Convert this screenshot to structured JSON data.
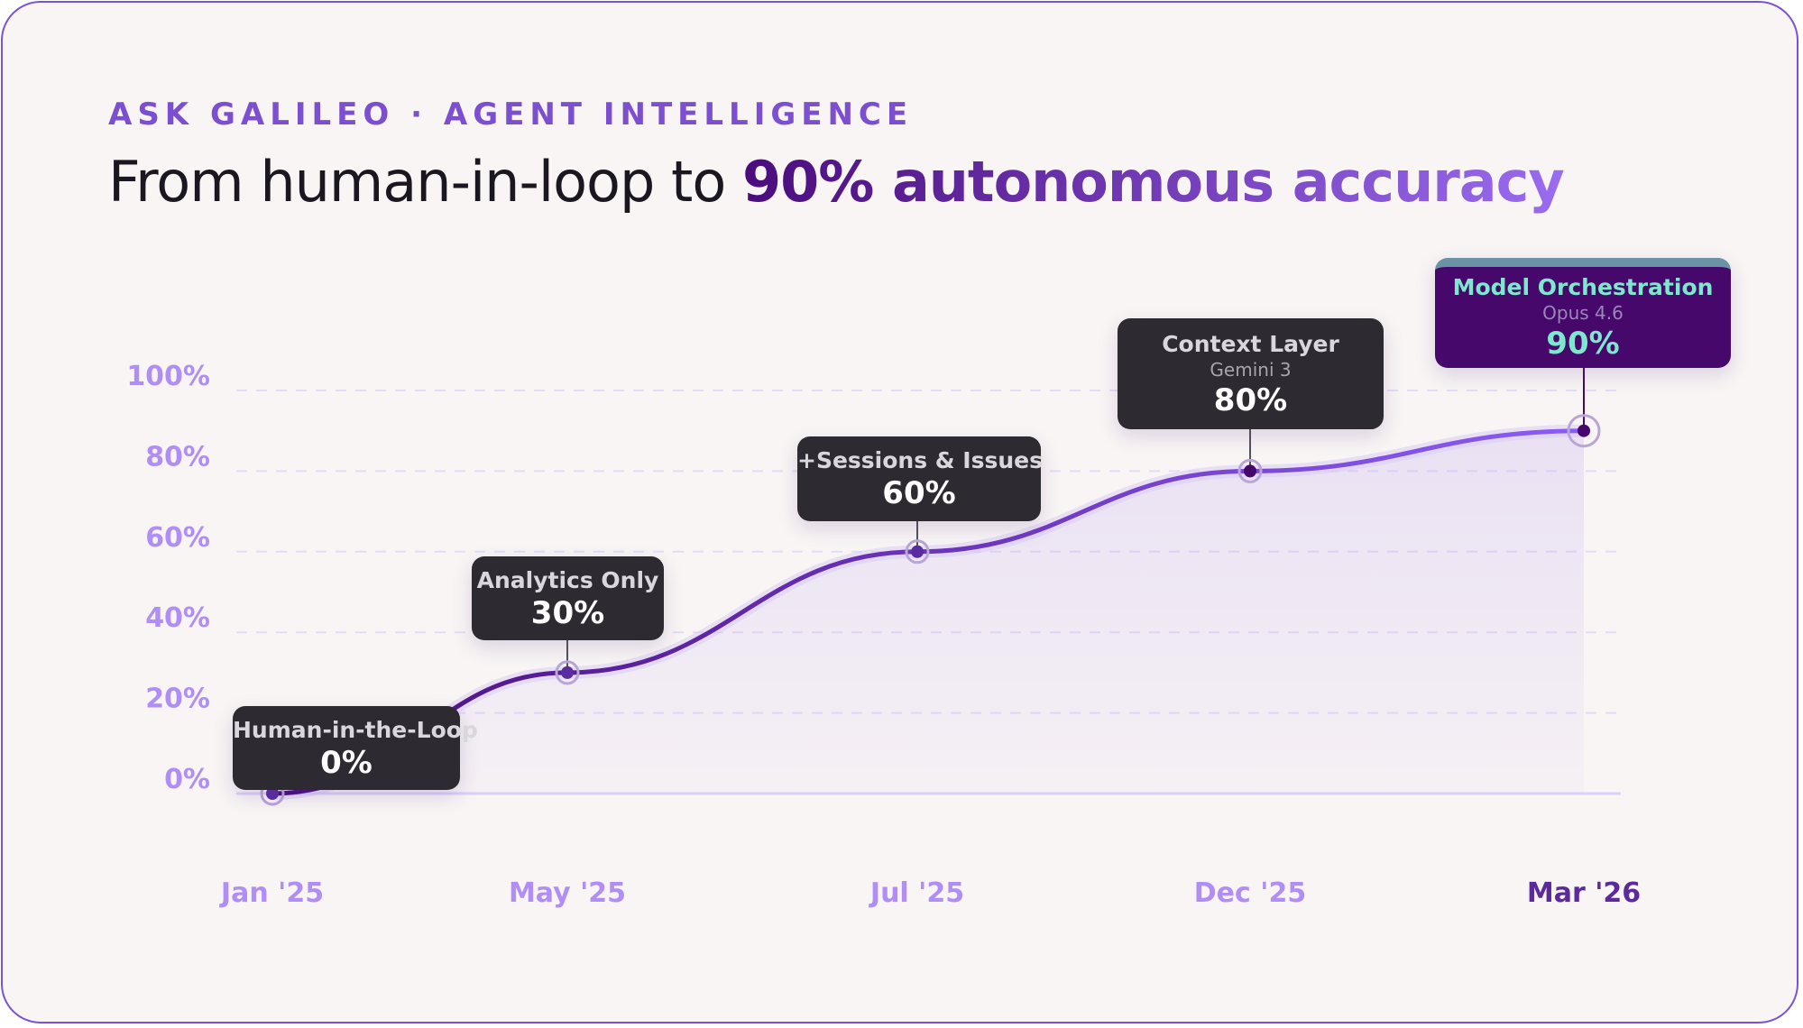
{
  "header": {
    "kicker": "ASK GALILEO · AGENT INTELLIGENCE",
    "title_plain": "From human-in-loop to ",
    "title_highlight": "90% autonomous accuracy"
  },
  "chart_data": {
    "type": "area",
    "title": "From human-in-loop to 90% autonomous accuracy",
    "categories": [
      "Jan '25",
      "May '25",
      "Jul '25",
      "Dec '25",
      "Mar '26"
    ],
    "values": [
      0,
      30,
      60,
      80,
      90
    ],
    "ylim": [
      0,
      100
    ],
    "yticks": [
      "0%",
      "20%",
      "40%",
      "60%",
      "80%",
      "100%"
    ],
    "grid": true,
    "annotations": [
      {
        "label": "Human-in-the-Loop",
        "sub": "",
        "value": "0%"
      },
      {
        "label": "Analytics Only",
        "sub": "",
        "value": "30%"
      },
      {
        "label": "+Sessions & Issues",
        "sub": "",
        "value": "60%"
      },
      {
        "label": "Context Layer",
        "sub": "Gemini 3",
        "value": "80%"
      },
      {
        "label": "Model Orchestration",
        "sub": "Opus 4.6",
        "value": "90%"
      }
    ],
    "colors": {
      "line_start": "#4a0c7c",
      "line_end": "#8b5cf6",
      "axis_labels": "#b08ef5",
      "highlight_bg": "#46086a",
      "highlight_text": "#7ee8cf",
      "tooltip_bg": "#2e2a31"
    }
  }
}
